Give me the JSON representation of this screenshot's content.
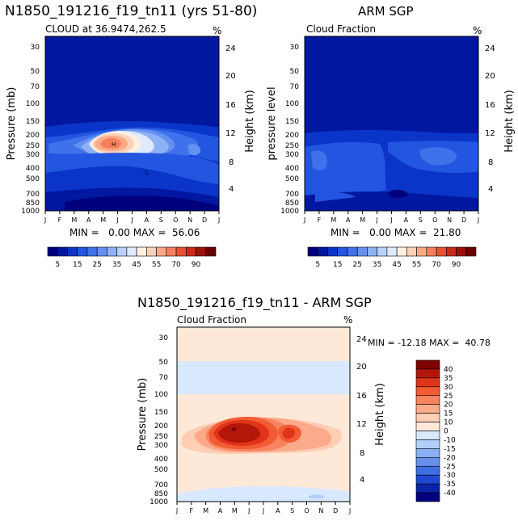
{
  "panels": [
    {
      "id": "model",
      "title": "N1850_191216_f19_tn11 (yrs 51-80)",
      "subtitle": "CLOUD at 36.9474,262.5",
      "units": "%",
      "left_label": "Pressure (mb)",
      "right_label": "Height (km)",
      "minmax": "MIN =   0.00 MAX =  56.06",
      "low_marker": "L",
      "high_marker": "H"
    },
    {
      "id": "obs",
      "title": "ARM SGP",
      "subtitle": "Cloud Fraction",
      "units": "%",
      "left_label": "pressure level",
      "right_label": "Height (km)",
      "minmax": "MIN =   0.00 MAX =  21.80"
    },
    {
      "id": "diff",
      "title": "N1850_191216_f19_tn11 - ARM SGP",
      "subtitle": "Cloud Fraction",
      "units": "%",
      "left_label": "Pressure (mb)",
      "right_label": "Height (km)",
      "minmax": "MIN = -12.18 MAX =  40.78",
      "high_marker": "H"
    }
  ],
  "chart_data": [
    {
      "type": "heatmap",
      "panel": "model",
      "title": "N1850_191216_f19_tn11 (yrs 51-80)",
      "subtitle": "CLOUD at 36.9474,262.5",
      "x": [
        "J",
        "F",
        "M",
        "A",
        "M",
        "J",
        "J",
        "A",
        "S",
        "O",
        "N",
        "D",
        "J"
      ],
      "y_ticks": [
        30,
        50,
        70,
        100,
        150,
        200,
        250,
        300,
        400,
        500,
        700,
        850,
        1000
      ],
      "y_right_ticks_km": [
        4,
        8,
        12,
        16,
        20,
        24
      ],
      "ylabel": "Pressure (mb)",
      "ylabel_right": "Height (km)",
      "min": 0.0,
      "max": 56.06
    },
    {
      "type": "heatmap",
      "panel": "obs",
      "title": "ARM SGP",
      "subtitle": "Cloud Fraction",
      "x": [
        "J",
        "F",
        "M",
        "A",
        "M",
        "J",
        "J",
        "A",
        "S",
        "O",
        "N",
        "D",
        "J"
      ],
      "y_ticks": [
        30,
        50,
        70,
        100,
        150,
        200,
        250,
        300,
        400,
        500,
        700,
        850,
        1000
      ],
      "y_right_ticks_km": [
        4,
        8,
        12,
        16,
        20,
        24
      ],
      "ylabel": "pressure level",
      "ylabel_right": "Height (km)",
      "min": 0.0,
      "max": 21.8
    },
    {
      "type": "heatmap",
      "panel": "diff",
      "title": "N1850_191216_f19_tn11 - ARM SGP",
      "subtitle": "Cloud Fraction",
      "x": [
        "J",
        "F",
        "M",
        "A",
        "M",
        "J",
        "J",
        "A",
        "S",
        "O",
        "N",
        "D",
        "J"
      ],
      "y_ticks": [
        30,
        50,
        70,
        100,
        150,
        200,
        250,
        300,
        400,
        500,
        700,
        850,
        1000
      ],
      "y_right_ticks_km": [
        4,
        8,
        12,
        16,
        20,
        24
      ],
      "ylabel": "Pressure (mb)",
      "ylabel_right": "Height (km)",
      "min": -12.18,
      "max": 40.78
    }
  ],
  "colorbar_main": {
    "labels": [
      "5",
      "15",
      "25",
      "35",
      "45",
      "55",
      "70",
      "90"
    ],
    "colors": [
      "#00007f",
      "#0018a0",
      "#0a35c8",
      "#2255e0",
      "#3f72ea",
      "#6490f0",
      "#8cb1f5",
      "#b8d1fa",
      "#dfeaff",
      "#fff1e1",
      "#fdd1b5",
      "#fba987",
      "#f67e5c",
      "#ea5034",
      "#cc2a18",
      "#9e1006",
      "#6a0000"
    ]
  },
  "colorbar_diff": {
    "labels": [
      "40",
      "35",
      "30",
      "25",
      "20",
      "15",
      "10",
      "0",
      "-10",
      "-15",
      "-20",
      "-25",
      "-30",
      "-35",
      "-40"
    ],
    "colors": [
      "#7d0000",
      "#b3170a",
      "#df3418",
      "#f25b34",
      "#f8845f",
      "#fbab8c",
      "#fdcdb4",
      "#fee9d8",
      "#d8e8ff",
      "#b2cff8",
      "#89b0f2",
      "#6690ea",
      "#3f6ee2",
      "#1e48d2",
      "#0824a8",
      "#00007d"
    ]
  },
  "model_regions": {
    "low_pressure": 480,
    "high_center_month": 4.8,
    "high_center_pressure": 230
  },
  "obs_regions": {
    "low_pressure": 720
  }
}
